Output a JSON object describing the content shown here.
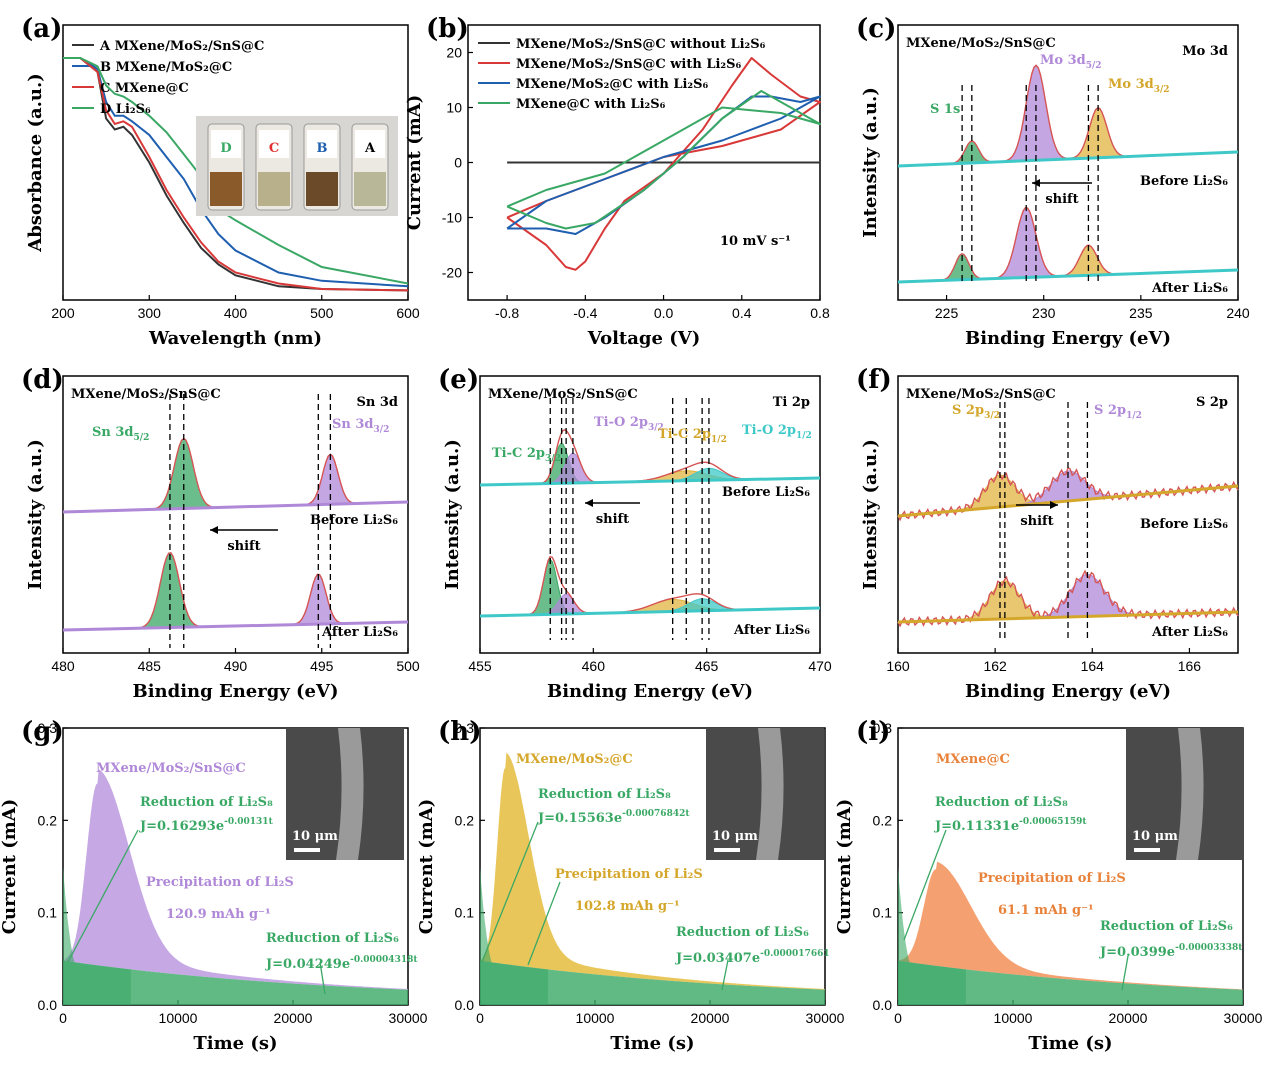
{
  "chart_data": [
    {
      "panel": "(a)",
      "type": "line",
      "xlabel": "Wavelength (nm)",
      "ylabel": "Absorbance (a.u.)",
      "xlim": [
        200,
        600
      ],
      "xticks": [
        "200",
        "300",
        "400",
        "500",
        "600"
      ],
      "legend_loc": "top-left",
      "series": [
        {
          "name": "A  MXene/MoS₂/SnS@C",
          "color": "#333333",
          "x": [
            200,
            220,
            240,
            250,
            260,
            270,
            280,
            300,
            320,
            340,
            360,
            380,
            400,
            450,
            500,
            600
          ],
          "y": [
            0.88,
            0.88,
            0.83,
            0.66,
            0.62,
            0.63,
            0.6,
            0.5,
            0.38,
            0.28,
            0.19,
            0.13,
            0.09,
            0.05,
            0.04,
            0.035
          ]
        },
        {
          "name": "B  MXene/MoS₂@C",
          "color": "#1f5fb0",
          "x": [
            200,
            220,
            240,
            250,
            260,
            270,
            280,
            300,
            320,
            340,
            360,
            380,
            400,
            450,
            500,
            600
          ],
          "y": [
            0.88,
            0.88,
            0.84,
            0.72,
            0.67,
            0.67,
            0.65,
            0.6,
            0.52,
            0.44,
            0.33,
            0.24,
            0.18,
            0.1,
            0.07,
            0.05
          ]
        },
        {
          "name": "C  MXene@C",
          "color": "#d93838",
          "x": [
            200,
            220,
            240,
            250,
            260,
            270,
            280,
            300,
            320,
            340,
            360,
            380,
            400,
            450,
            500,
            600
          ],
          "y": [
            0.88,
            0.88,
            0.83,
            0.69,
            0.64,
            0.65,
            0.63,
            0.52,
            0.4,
            0.3,
            0.21,
            0.14,
            0.1,
            0.06,
            0.04,
            0.035
          ]
        },
        {
          "name": "D  Li₂S₆",
          "color": "#3aa865",
          "x": [
            200,
            220,
            240,
            250,
            260,
            270,
            280,
            300,
            320,
            340,
            360,
            380,
            400,
            450,
            500,
            600
          ],
          "y": [
            0.88,
            0.88,
            0.85,
            0.78,
            0.75,
            0.74,
            0.72,
            0.67,
            0.61,
            0.53,
            0.45,
            0.33,
            0.29,
            0.2,
            0.12,
            0.06
          ]
        }
      ],
      "inset_labels": [
        "D",
        "C",
        "B",
        "A"
      ]
    },
    {
      "panel": "(b)",
      "type": "line",
      "xlabel": "Voltage (V)",
      "ylabel": "Current (mA)",
      "xlim": [
        -1.0,
        0.8
      ],
      "ylim": [
        -25,
        25
      ],
      "xticks": [
        "-0.8",
        "-0.4",
        "0.0",
        "0.4",
        "0.8"
      ],
      "yticks": [
        "-20",
        "-10",
        "0",
        "10",
        "20"
      ],
      "annotation": "10 mV s⁻¹",
      "series": [
        {
          "name": "MXene/MoS₂/SnS@C without Li₂S₆",
          "color": "#333333",
          "x": [
            -0.8,
            0.8
          ],
          "y": [
            0,
            0
          ]
        },
        {
          "name": "MXene/MoS₂/SnS@C with Li₂S₆",
          "color": "#d93838",
          "x": [
            -0.8,
            -0.6,
            -0.5,
            -0.45,
            -0.4,
            -0.3,
            -0.2,
            0.0,
            0.2,
            0.35,
            0.45,
            0.55,
            0.7,
            0.8,
            0.6,
            0.3,
            0.0,
            -0.3,
            -0.6,
            -0.8
          ],
          "y": [
            -10,
            -15,
            -19,
            -19.5,
            -18,
            -12,
            -7,
            -2,
            6,
            14,
            19,
            16,
            12,
            11,
            6,
            3,
            1,
            -3,
            -7,
            -10
          ]
        },
        {
          "name": "MXene/MoS₂@C with Li₂S₆",
          "color": "#1f5fb0",
          "x": [
            -0.8,
            -0.6,
            -0.45,
            -0.3,
            -0.1,
            0.1,
            0.3,
            0.45,
            0.55,
            0.7,
            0.8,
            0.6,
            0.3,
            0.0,
            -0.3,
            -0.6,
            -0.8
          ],
          "y": [
            -12,
            -12,
            -13,
            -10,
            -5,
            1,
            8,
            12,
            12,
            11,
            12,
            8,
            4,
            1,
            -3,
            -7,
            -12
          ]
        },
        {
          "name": "MXene@C with Li₂S₆",
          "color": "#3aa865",
          "x": [
            -0.8,
            -0.6,
            -0.5,
            -0.35,
            -0.1,
            0.1,
            0.3,
            0.5,
            0.65,
            0.8,
            0.6,
            0.3,
            0.0,
            -0.3,
            -0.6,
            -0.8
          ],
          "y": [
            -8,
            -11,
            -12,
            -11,
            -5,
            1,
            8,
            13,
            10,
            7,
            9,
            10,
            4,
            -2,
            -5,
            -8
          ]
        }
      ]
    },
    {
      "panel": "(c)",
      "type": "line",
      "title": "MXene/MoS₂/SnS@C",
      "region": "Mo 3d",
      "xlabel": "Binding Energy (eV)",
      "ylabel": "Intensity (a.u.)",
      "xlim": [
        222.5,
        240
      ],
      "xticks": [
        "225",
        "230",
        "235",
        "240"
      ],
      "traces": [
        {
          "label": "Before Li₂S₆",
          "peaks": [
            {
              "name": "S 1s",
              "center": 226.3,
              "color": "#3aa865"
            },
            {
              "name": "Mo 3d5/2",
              "center": 229.6,
              "color": "#b088d8"
            },
            {
              "name": "Mo 3d3/2",
              "center": 232.8,
              "color": "#e0b440"
            }
          ]
        },
        {
          "label": "After Li₂S₆",
          "peaks": [
            {
              "name": "S 1s",
              "center": 225.8,
              "color": "#3aa865"
            },
            {
              "name": "Mo 3d5/2",
              "center": 229.1,
              "color": "#b088d8"
            },
            {
              "name": "Mo 3d3/2",
              "center": 232.3,
              "color": "#e0b440"
            }
          ]
        }
      ],
      "labels": {
        "s1s": "S 1s",
        "mo52": "Mo 3d",
        "mo52sub": "5/2",
        "mo32": "Mo 3d",
        "mo32sub": "3/2",
        "shift": "shift",
        "before": "Before Li₂S₆",
        "after": "After Li₂S₆"
      }
    },
    {
      "panel": "(d)",
      "type": "line",
      "title": "MXene/MoS₂/SnS@C",
      "region": "Sn 3d",
      "xlabel": "Binding Energy (eV)",
      "ylabel": "Intensity (a.u.)",
      "xlim": [
        480,
        500
      ],
      "xticks": [
        "480",
        "485",
        "490",
        "495",
        "500"
      ],
      "traces": [
        {
          "label": "Before Li₂S₆",
          "peaks": [
            {
              "name": "Sn 3d5/2",
              "center": 487.0,
              "color": "#3aa865"
            },
            {
              "name": "Sn 3d3/2",
              "center": 495.5,
              "color": "#b088d8"
            }
          ]
        },
        {
          "label": "After Li₂S₆",
          "peaks": [
            {
              "name": "Sn 3d5/2",
              "center": 486.2,
              "color": "#3aa865"
            },
            {
              "name": "Sn 3d3/2",
              "center": 494.8,
              "color": "#b088d8"
            }
          ]
        }
      ],
      "labels": {
        "sn52": "Sn 3d",
        "sn52sub": "5/2",
        "sn32": "Sn 3d",
        "sn32sub": "3/2",
        "shift": "shift",
        "before": "Before Li₂S₆",
        "after": "After Li₂S₆"
      }
    },
    {
      "panel": "(e)",
      "type": "line",
      "title": "MXene/MoS₂/SnS@C",
      "region": "Ti 2p",
      "xlabel": "Binding Energy (eV)",
      "ylabel": "Intensity (a.u.)",
      "xlim": [
        455,
        470
      ],
      "xticks": [
        "455",
        "460",
        "465",
        "470"
      ],
      "traces": [
        {
          "label": "Before Li₂S₆",
          "peaks": [
            {
              "name": "Ti-C 2p3/2",
              "center": 458.6,
              "color": "#3aa865"
            },
            {
              "name": "Ti-O 2p3/2",
              "center": 459.1,
              "color": "#b088d8"
            },
            {
              "name": "Ti-C 2p1/2",
              "center": 464.1,
              "color": "#e0b440"
            },
            {
              "name": "Ti-O 2p1/2",
              "center": 465.1,
              "color": "#3fc8c8"
            }
          ]
        },
        {
          "label": "After Li₂S₆",
          "peaks": [
            {
              "name": "Ti-C 2p3/2",
              "center": 458.1,
              "color": "#3aa865"
            },
            {
              "name": "Ti-O 2p3/2",
              "center": 458.8,
              "color": "#b088d8"
            },
            {
              "name": "Ti-C 2p1/2",
              "center": 463.5,
              "color": "#e0b440"
            },
            {
              "name": "Ti-O 2p1/2",
              "center": 464.8,
              "color": "#3fc8c8"
            }
          ]
        }
      ],
      "labels": {
        "tic32": "Ti-C 2p",
        "tic32sub": "3/2",
        "tio32": "Ti-O 2p",
        "tio32sub": "3/2",
        "tic12": "Ti-C 2p",
        "tic12sub": "1/2",
        "tio12": "Ti-O 2p",
        "tio12sub": "1/2",
        "shift": "shift",
        "before": "Before Li₂S₆",
        "after": "After Li₂S₆"
      }
    },
    {
      "panel": "(f)",
      "type": "line",
      "title": "MXene/MoS₂/SnS@C",
      "region": "S 2p",
      "xlabel": "Binding Energy (eV)",
      "ylabel": "Intensity (a.u.)",
      "xlim": [
        160,
        167
      ],
      "xticks": [
        "160",
        "162",
        "164",
        "166"
      ],
      "traces": [
        {
          "label": "Before Li₂S₆",
          "peaks": [
            {
              "name": "S 2p3/2",
              "center": 162.1,
              "color": "#e0b440"
            },
            {
              "name": "S 2p1/2",
              "center": 163.5,
              "color": "#b088d8"
            }
          ]
        },
        {
          "label": "After Li₂S₆",
          "peaks": [
            {
              "name": "S 2p3/2",
              "center": 162.2,
              "color": "#e0b440"
            },
            {
              "name": "S 2p1/2",
              "center": 163.9,
              "color": "#b088d8"
            }
          ]
        }
      ],
      "labels": {
        "s32": "S 2p",
        "s32sub": "3/2",
        "s12": "S 2p",
        "s12sub": "1/2",
        "shift": "shift",
        "before": "Before Li₂S₆",
        "after": "After Li₂S₆"
      }
    },
    {
      "panel": "(g)",
      "type": "area",
      "title": "MXene/MoS₂/SnS@C",
      "title_color": "#b088d8",
      "xlabel": "Time (s)",
      "ylabel": "Current (mA)",
      "xlim": [
        0,
        30000
      ],
      "ylim": [
        0,
        0.3
      ],
      "xticks": [
        "0",
        "10000",
        "20000",
        "30000"
      ],
      "yticks": [
        "0.0",
        "0.1",
        "0.2",
        "0.3"
      ],
      "peak_time": 3000,
      "peak_current": 0.24,
      "fill": "#c6a8e4",
      "red_s8_label": "Reduction of Li₂S₈",
      "red_s8_eq": "J=0.16293e",
      "red_s8_exp": "-0.00131t",
      "precip_label": "Precipitation of Li₂S",
      "capacity": "120.9 mAh g⁻¹",
      "red_s6_label": "Reduction of Li₂S₆",
      "red_s6_eq": "J=0.04249e",
      "red_s6_exp": "-0.00004318t",
      "scalebar": "10 μm"
    },
    {
      "panel": "(h)",
      "type": "area",
      "title": "MXene/MoS₂@C",
      "title_color": "#d4a62a",
      "xlabel": "Time (s)",
      "ylabel": "Current (mA)",
      "xlim": [
        0,
        30000
      ],
      "ylim": [
        0,
        0.3
      ],
      "xticks": [
        "0",
        "10000",
        "20000",
        "30000"
      ],
      "yticks": [
        "0.0",
        "0.1",
        "0.2",
        "0.3"
      ],
      "peak_time": 2200,
      "peak_current": 0.257,
      "fill": "#e8c65a",
      "red_s8_label": "Reduction of Li₂S₈",
      "red_s8_eq": "J=0.15563e",
      "red_s8_exp": "-0.00076842t",
      "precip_label": "Precipitation of Li₂S",
      "capacity": "102.8 mAh g⁻¹",
      "red_s6_label": "Reduction of Li₂S₆",
      "red_s6_eq": "J=0.03407e",
      "red_s6_exp": "-0.000017661",
      "scalebar": "10 μm"
    },
    {
      "panel": "(i)",
      "type": "area",
      "title": "MXene@C",
      "title_color": "#e8823a",
      "xlabel": "Time (s)",
      "ylabel": "Current (mA)",
      "xlim": [
        0,
        30000
      ],
      "ylim": [
        0,
        0.3
      ],
      "xticks": [
        "0",
        "10000",
        "20000",
        "30000"
      ],
      "yticks": [
        "0.0",
        "0.1",
        "0.2",
        "0.3"
      ],
      "peak_time": 3300,
      "peak_current": 0.147,
      "fill": "#f4a070",
      "red_s8_label": "Reduction of Li₂S₈",
      "red_s8_eq": "J=0.11331e",
      "red_s8_exp": "-0.00065159t",
      "precip_label": "Precipitation of Li₂S",
      "capacity": "61.1 mAh g⁻¹",
      "red_s6_label": "Reduction of Li₂S₆",
      "red_s6_eq": "J=0.0399e",
      "red_s6_exp": "-0.00003338t",
      "scalebar": "10 μm"
    }
  ]
}
